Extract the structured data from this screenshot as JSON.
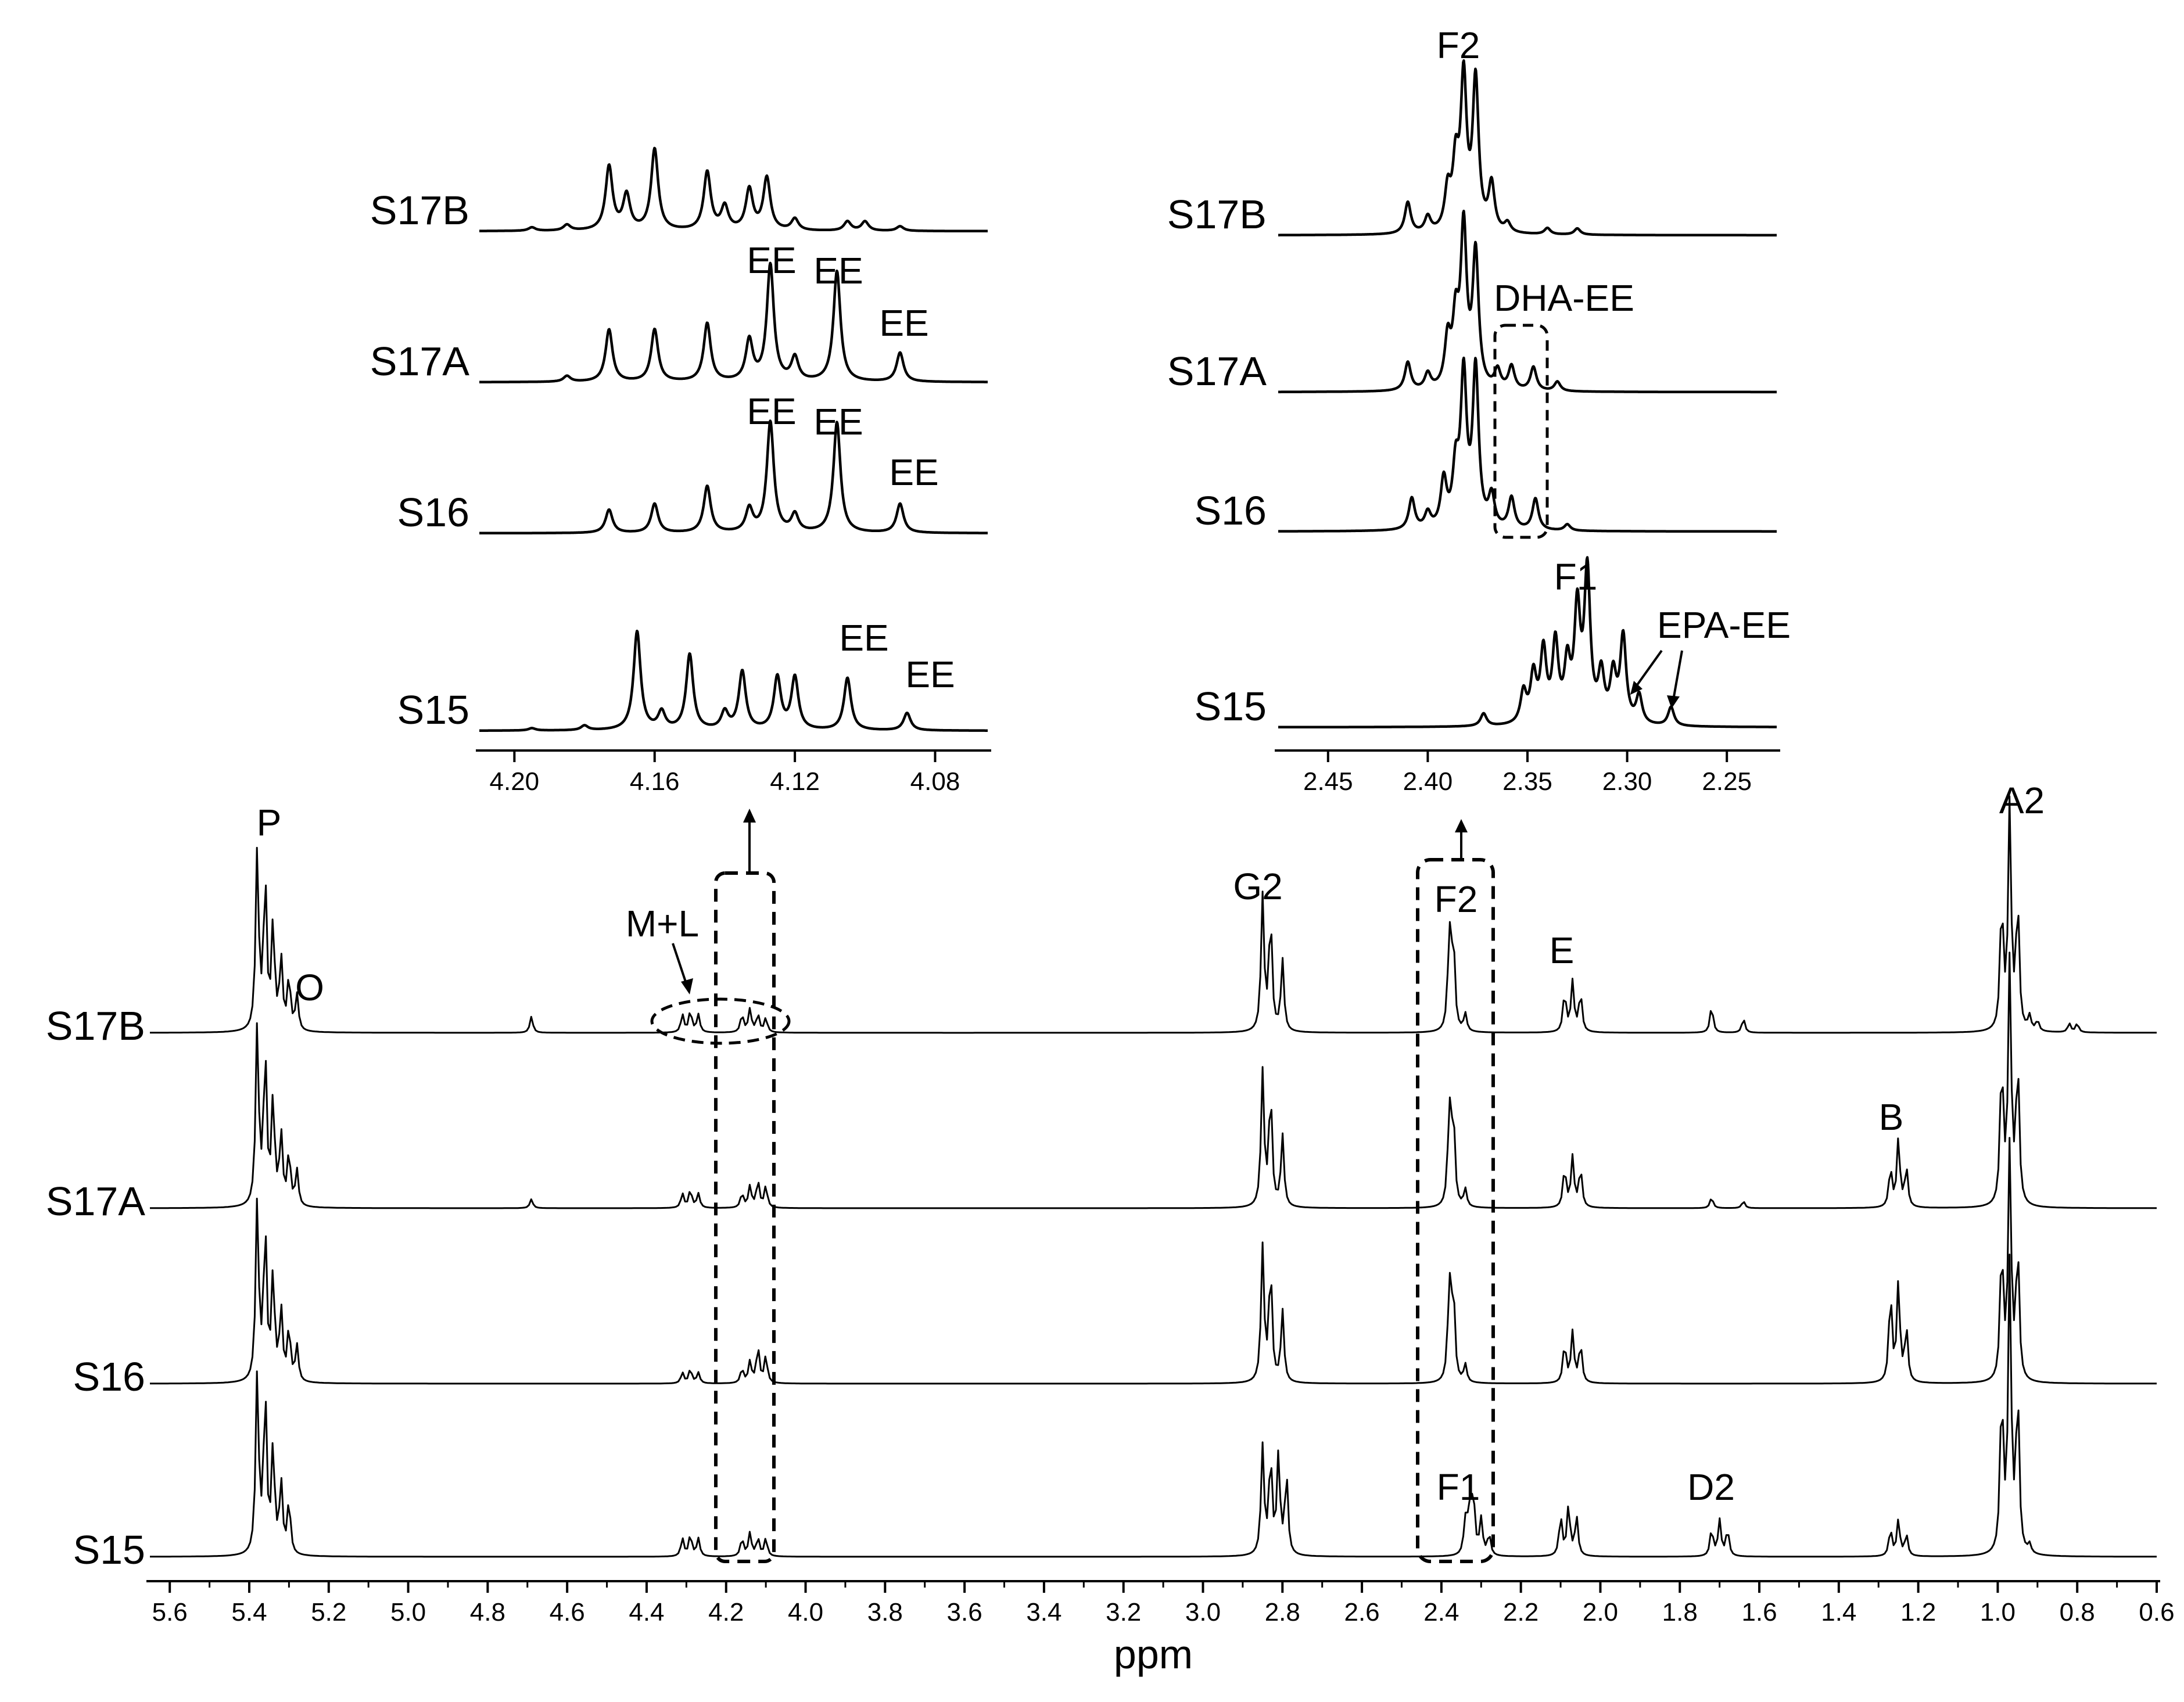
{
  "chart_data": [
    {
      "id": "main",
      "type": "line",
      "subtype": "1H NMR spectra (stacked)",
      "xlabel": "ppm",
      "xlim": [
        5.65,
        0.6
      ],
      "x_reversed": true,
      "x_ticks": [
        "5.6",
        "5.4",
        "5.2",
        "5.0",
        "4.8",
        "4.6",
        "4.4",
        "4.2",
        "4.0",
        "3.8",
        "3.6",
        "3.4",
        "3.2",
        "3.0",
        "2.8",
        "2.6",
        "2.4",
        "2.2",
        "2.0",
        "1.8",
        "1.6",
        "1.4",
        "1.2",
        "1.0",
        "0.8",
        "0.6"
      ],
      "series": [
        {
          "name": "S17B",
          "peaks": [
            [
              5.38,
              1.0
            ],
            [
              5.36,
              0.85
            ],
            [
              5.34,
              0.6
            ],
            [
              5.32,
              0.4
            ],
            [
              5.3,
              0.3
            ],
            [
              5.28,
              0.2
            ],
            [
              4.69,
              0.09
            ],
            [
              4.31,
              0.1
            ],
            [
              4.29,
              0.12
            ],
            [
              4.27,
              0.1
            ],
            [
              4.16,
              0.1
            ],
            [
              4.14,
              0.13
            ],
            [
              4.12,
              0.1
            ],
            [
              4.1,
              0.08
            ],
            [
              2.85,
              0.75
            ],
            [
              2.83,
              0.65
            ],
            [
              2.8,
              0.4
            ],
            [
              2.38,
              0.55
            ],
            [
              2.37,
              0.5
            ],
            [
              2.34,
              0.1
            ],
            [
              2.09,
              0.22
            ],
            [
              2.07,
              0.28
            ],
            [
              2.05,
              0.22
            ],
            [
              1.72,
              0.15
            ],
            [
              1.64,
              0.08
            ],
            [
              0.99,
              0.72
            ],
            [
              0.97,
              1.25
            ],
            [
              0.95,
              0.72
            ],
            [
              0.92,
              0.08
            ],
            [
              0.9,
              0.06
            ],
            [
              0.82,
              0.05
            ],
            [
              0.8,
              0.05
            ]
          ]
        },
        {
          "name": "S17A",
          "peaks": [
            [
              5.38,
              1.0
            ],
            [
              5.36,
              0.85
            ],
            [
              5.34,
              0.6
            ],
            [
              5.32,
              0.4
            ],
            [
              5.3,
              0.3
            ],
            [
              5.28,
              0.2
            ],
            [
              4.69,
              0.05
            ],
            [
              4.31,
              0.08
            ],
            [
              4.29,
              0.1
            ],
            [
              4.27,
              0.08
            ],
            [
              4.16,
              0.08
            ],
            [
              4.14,
              0.12
            ],
            [
              4.12,
              0.15
            ],
            [
              4.1,
              0.12
            ],
            [
              2.85,
              0.75
            ],
            [
              2.83,
              0.65
            ],
            [
              2.8,
              0.4
            ],
            [
              2.38,
              0.55
            ],
            [
              2.37,
              0.5
            ],
            [
              2.34,
              0.1
            ],
            [
              2.09,
              0.22
            ],
            [
              2.07,
              0.28
            ],
            [
              2.05,
              0.22
            ],
            [
              1.72,
              0.06
            ],
            [
              1.64,
              0.04
            ],
            [
              1.27,
              0.22
            ],
            [
              1.25,
              0.38
            ],
            [
              1.23,
              0.22
            ],
            [
              0.99,
              0.8
            ],
            [
              0.97,
              1.35
            ],
            [
              0.95,
              0.8
            ]
          ]
        },
        {
          "name": "S16",
          "peaks": [
            [
              5.38,
              1.0
            ],
            [
              5.36,
              0.85
            ],
            [
              5.34,
              0.6
            ],
            [
              5.32,
              0.4
            ],
            [
              5.3,
              0.3
            ],
            [
              5.28,
              0.2
            ],
            [
              4.31,
              0.06
            ],
            [
              4.29,
              0.08
            ],
            [
              4.27,
              0.06
            ],
            [
              4.16,
              0.08
            ],
            [
              4.14,
              0.12
            ],
            [
              4.12,
              0.2
            ],
            [
              4.1,
              0.15
            ],
            [
              2.85,
              0.75
            ],
            [
              2.83,
              0.65
            ],
            [
              2.8,
              0.4
            ],
            [
              2.38,
              0.55
            ],
            [
              2.37,
              0.5
            ],
            [
              2.34,
              0.1
            ],
            [
              2.09,
              0.22
            ],
            [
              2.07,
              0.28
            ],
            [
              2.05,
              0.22
            ],
            [
              1.27,
              0.5
            ],
            [
              1.25,
              0.55
            ],
            [
              1.23,
              0.3
            ],
            [
              0.99,
              0.75
            ],
            [
              0.97,
              1.3
            ],
            [
              0.95,
              0.75
            ]
          ]
        },
        {
          "name": "S15",
          "peaks": [
            [
              5.38,
              1.0
            ],
            [
              5.36,
              0.9
            ],
            [
              5.34,
              0.6
            ],
            [
              5.32,
              0.4
            ],
            [
              5.3,
              0.3
            ],
            [
              4.31,
              0.1
            ],
            [
              4.29,
              0.12
            ],
            [
              4.27,
              0.1
            ],
            [
              4.16,
              0.1
            ],
            [
              4.14,
              0.13
            ],
            [
              4.12,
              0.1
            ],
            [
              4.1,
              0.1
            ],
            [
              2.85,
              0.6
            ],
            [
              2.83,
              0.55
            ],
            [
              2.81,
              0.55
            ],
            [
              2.79,
              0.45
            ],
            [
              2.34,
              0.18
            ],
            [
              2.33,
              0.25
            ],
            [
              2.32,
              0.35
            ],
            [
              2.3,
              0.2
            ],
            [
              2.28,
              0.12
            ],
            [
              2.1,
              0.22
            ],
            [
              2.08,
              0.28
            ],
            [
              2.06,
              0.22
            ],
            [
              1.72,
              0.15
            ],
            [
              1.7,
              0.2
            ],
            [
              1.68,
              0.15
            ],
            [
              1.27,
              0.15
            ],
            [
              1.25,
              0.2
            ],
            [
              1.23,
              0.12
            ],
            [
              0.99,
              0.9
            ],
            [
              0.97,
              1.6
            ],
            [
              0.95,
              0.9
            ],
            [
              0.92,
              0.05
            ]
          ]
        }
      ],
      "annotations": [
        "P",
        "O",
        "M+L",
        "G2",
        "F2",
        "E",
        "A2",
        "B",
        "F1",
        "D2"
      ]
    },
    {
      "id": "inset_left",
      "type": "line",
      "subtype": "1H NMR expansion",
      "xlim": [
        4.21,
        4.065
      ],
      "x_reversed": true,
      "x_ticks": [
        "4.20",
        "4.16",
        "4.12",
        "4.08"
      ],
      "series": [
        {
          "name": "S17B",
          "peaks": [
            [
              4.195,
              0.03
            ],
            [
              4.185,
              0.05
            ],
            [
              4.173,
              0.55
            ],
            [
              4.168,
              0.3
            ],
            [
              4.16,
              0.7
            ],
            [
              4.145,
              0.5
            ],
            [
              4.14,
              0.2
            ],
            [
              4.133,
              0.35
            ],
            [
              4.128,
              0.45
            ],
            [
              4.12,
              0.1
            ],
            [
              4.105,
              0.08
            ],
            [
              4.1,
              0.08
            ],
            [
              4.09,
              0.04
            ]
          ]
        },
        {
          "name": "S17A",
          "peaks": [
            [
              4.185,
              0.05
            ],
            [
              4.173,
              0.45
            ],
            [
              4.16,
              0.45
            ],
            [
              4.145,
              0.5
            ],
            [
              4.133,
              0.35
            ],
            [
              4.127,
              1.0
            ],
            [
              4.12,
              0.2
            ],
            [
              4.108,
              0.95
            ],
            [
              4.09,
              0.25
            ]
          ]
        },
        {
          "name": "S16",
          "peaks": [
            [
              4.173,
              0.2
            ],
            [
              4.16,
              0.25
            ],
            [
              4.145,
              0.4
            ],
            [
              4.133,
              0.2
            ],
            [
              4.127,
              0.95
            ],
            [
              4.12,
              0.15
            ],
            [
              4.108,
              0.95
            ],
            [
              4.09,
              0.25
            ]
          ]
        },
        {
          "name": "S15",
          "peaks": [
            [
              4.195,
              0.02
            ],
            [
              4.18,
              0.04
            ],
            [
              4.165,
              0.85
            ],
            [
              4.158,
              0.15
            ],
            [
              4.15,
              0.65
            ],
            [
              4.14,
              0.15
            ],
            [
              4.135,
              0.5
            ],
            [
              4.125,
              0.45
            ],
            [
              4.12,
              0.45
            ],
            [
              4.105,
              0.45
            ],
            [
              4.088,
              0.15
            ]
          ]
        }
      ],
      "annotations": [
        "EE",
        "EE",
        "EE",
        "EE",
        "EE",
        "EE",
        "EE"
      ]
    },
    {
      "id": "inset_right",
      "type": "line",
      "subtype": "1H NMR expansion",
      "xlim": [
        2.475,
        2.225
      ],
      "x_reversed": true,
      "x_ticks": [
        "2.45",
        "2.40",
        "2.35",
        "2.30",
        "2.25"
      ],
      "series": [
        {
          "name": "S17B",
          "peaks": [
            [
              2.41,
              0.2
            ],
            [
              2.4,
              0.1
            ],
            [
              2.39,
              0.25
            ],
            [
              2.386,
              0.4
            ],
            [
              2.382,
              0.95
            ],
            [
              2.376,
              0.95
            ],
            [
              2.368,
              0.3
            ],
            [
              2.36,
              0.06
            ],
            [
              2.34,
              0.04
            ],
            [
              2.325,
              0.04
            ]
          ]
        },
        {
          "name": "S17A",
          "peaks": [
            [
              2.41,
              0.18
            ],
            [
              2.4,
              0.1
            ],
            [
              2.39,
              0.3
            ],
            [
              2.386,
              0.4
            ],
            [
              2.382,
              1.0
            ],
            [
              2.376,
              0.85
            ],
            [
              2.365,
              0.12
            ],
            [
              2.358,
              0.15
            ],
            [
              2.347,
              0.15
            ],
            [
              2.335,
              0.06
            ]
          ]
        },
        {
          "name": "S16",
          "peaks": [
            [
              2.408,
              0.2
            ],
            [
              2.4,
              0.1
            ],
            [
              2.392,
              0.3
            ],
            [
              2.386,
              0.35
            ],
            [
              2.382,
              0.95
            ],
            [
              2.376,
              1.0
            ],
            [
              2.368,
              0.2
            ],
            [
              2.358,
              0.2
            ],
            [
              2.346,
              0.2
            ],
            [
              2.33,
              0.04
            ]
          ]
        },
        {
          "name": "S15",
          "peaks": [
            [
              2.372,
              0.08
            ],
            [
              2.352,
              0.2
            ],
            [
              2.347,
              0.3
            ],
            [
              2.342,
              0.45
            ],
            [
              2.336,
              0.5
            ],
            [
              2.33,
              0.35
            ],
            [
              2.325,
              0.7
            ],
            [
              2.32,
              0.95
            ],
            [
              2.313,
              0.3
            ],
            [
              2.307,
              0.3
            ],
            [
              2.302,
              0.55
            ],
            [
              2.294,
              0.18
            ],
            [
              2.278,
              0.12
            ]
          ]
        }
      ],
      "annotations": [
        "F2",
        "DHA-EE",
        "F1",
        "EPA-EE"
      ]
    }
  ]
}
